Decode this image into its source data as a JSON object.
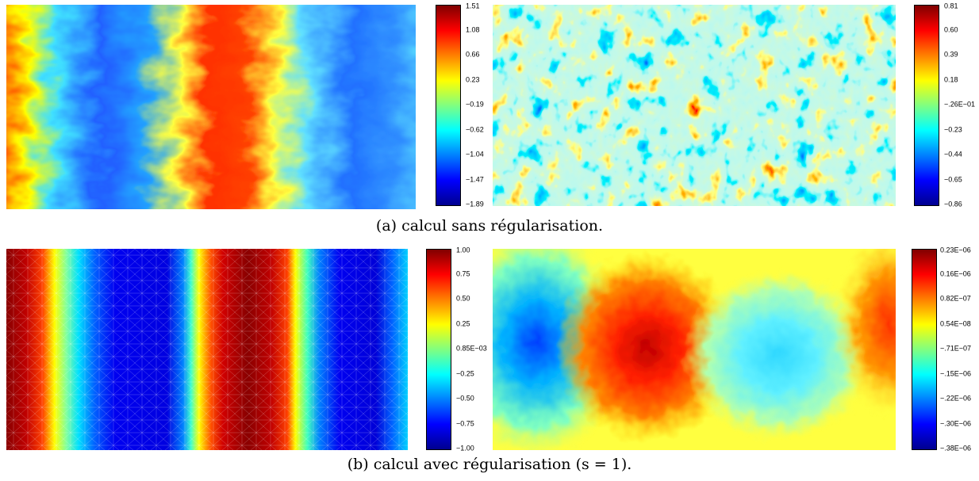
{
  "captions": {
    "a": "(a) calcul sans régularisation.",
    "b": "(b) calcul avec régularisation (s = 1)."
  },
  "colormap": [
    "#00008f",
    "#0000ff",
    "#0080ff",
    "#00ffff",
    "#80ff80",
    "#ffff00",
    "#ff8000",
    "#ff0000",
    "#800000"
  ],
  "colorbars": [
    {
      "ticks": [
        "1.51",
        "1.08",
        "0.66",
        "0.23",
        "−0.19",
        "−0.62",
        "−1.04",
        "−1.47",
        "−1.89"
      ]
    },
    {
      "ticks": [
        "0.81",
        "0.60",
        "0.39",
        "0.18",
        "−.26E−01",
        "−0.23",
        "−0.44",
        "−0.65",
        "−0.86"
      ]
    },
    {
      "ticks": [
        "1.00",
        "0.75",
        "0.50",
        "0.25",
        "0.85E−03",
        "−0.25",
        "−0.50",
        "−0.75",
        "−1.00"
      ]
    },
    {
      "ticks": [
        "0.23E−06",
        "0.16E−06",
        "0.82E−07",
        "0.54E−08",
        "−.71E−07",
        "−.15E−06",
        "−.22E−06",
        "−.30E−06",
        "−.38E−06"
      ]
    }
  ]
}
